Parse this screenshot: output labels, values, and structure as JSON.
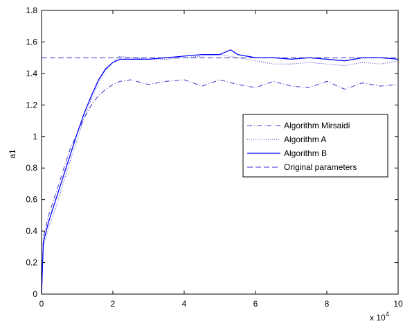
{
  "chart_data": {
    "type": "line",
    "xlabel": "",
    "ylabel": "a1",
    "x_exponent_label": "x 10",
    "x_exponent_power": "4",
    "xlim": [
      0,
      10
    ],
    "ylim": [
      0,
      1.8
    ],
    "xticks": [
      "0",
      "2",
      "4",
      "6",
      "8",
      "10"
    ],
    "yticks": [
      "0",
      "0.2",
      "0.4",
      "0.6",
      "0.8",
      "1",
      "1.2",
      "1.4",
      "1.6",
      "1.8"
    ],
    "grid": false,
    "legend_position": "right",
    "series": [
      {
        "name": "Algorithm Mirsaidi",
        "style": "dashdot",
        "color": "#3333cc",
        "x": [
          0,
          0.05,
          0.2,
          0.4,
          0.6,
          0.8,
          1.0,
          1.2,
          1.4,
          1.6,
          1.8,
          2.0,
          2.2,
          2.5,
          3.0,
          3.5,
          4.0,
          4.5,
          5.0,
          5.5,
          6.0,
          6.5,
          7.0,
          7.5,
          8.0,
          8.5,
          9.0,
          9.5,
          10.0
        ],
        "y": [
          0,
          0.36,
          0.5,
          0.64,
          0.78,
          0.92,
          1.02,
          1.12,
          1.2,
          1.26,
          1.3,
          1.33,
          1.35,
          1.36,
          1.33,
          1.35,
          1.36,
          1.32,
          1.36,
          1.33,
          1.31,
          1.35,
          1.32,
          1.31,
          1.35,
          1.3,
          1.34,
          1.32,
          1.33
        ]
      },
      {
        "name": "Algorithm A",
        "style": "dotted",
        "color": "#3333cc",
        "x": [
          0,
          0.05,
          0.2,
          0.4,
          0.6,
          0.8,
          1.0,
          1.2,
          1.4,
          1.6,
          1.8,
          2.0,
          2.2,
          2.5,
          3.0,
          3.5,
          4.0,
          4.5,
          5.0,
          5.5,
          6.0,
          6.5,
          7.0,
          7.5,
          8.0,
          8.5,
          9.0,
          9.5,
          10.0
        ],
        "y": [
          0,
          0.3,
          0.42,
          0.55,
          0.7,
          0.84,
          0.98,
          1.12,
          1.24,
          1.34,
          1.42,
          1.47,
          1.51,
          1.5,
          1.49,
          1.49,
          1.5,
          1.51,
          1.52,
          1.5,
          1.48,
          1.46,
          1.46,
          1.47,
          1.46,
          1.45,
          1.47,
          1.46,
          1.48
        ]
      },
      {
        "name": "Algorithm B",
        "style": "solid",
        "color": "#0000ff",
        "x": [
          0,
          0.05,
          0.2,
          0.4,
          0.6,
          0.8,
          1.0,
          1.2,
          1.4,
          1.6,
          1.8,
          2.0,
          2.2,
          2.5,
          3.0,
          3.5,
          4.0,
          4.5,
          5.0,
          5.3,
          5.5,
          6.0,
          6.5,
          7.0,
          7.5,
          8.0,
          8.5,
          9.0,
          9.5,
          10.0
        ],
        "y": [
          0,
          0.33,
          0.46,
          0.6,
          0.74,
          0.88,
          1.02,
          1.15,
          1.26,
          1.36,
          1.43,
          1.47,
          1.49,
          1.49,
          1.49,
          1.5,
          1.51,
          1.52,
          1.52,
          1.55,
          1.52,
          1.5,
          1.5,
          1.49,
          1.5,
          1.49,
          1.48,
          1.5,
          1.5,
          1.49
        ]
      },
      {
        "name": "Original parameters",
        "style": "dashed",
        "color": "#3333cc",
        "x": [
          0,
          10
        ],
        "y": [
          1.5,
          1.5
        ]
      }
    ]
  }
}
